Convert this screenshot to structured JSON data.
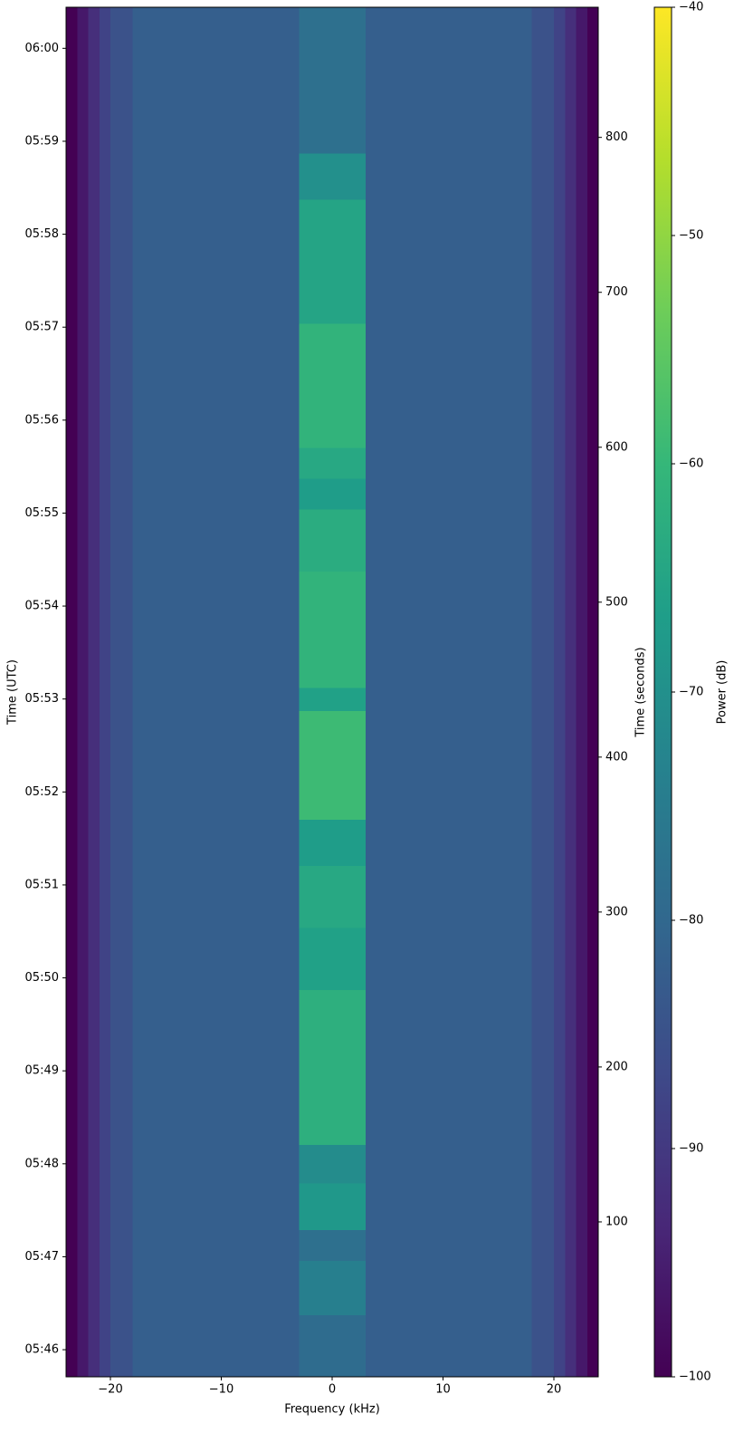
{
  "chart_data": {
    "type": "heatmap",
    "xlabel": "Frequency (kHz)",
    "ylabel": "Time (UTC)",
    "y2label": "Time (seconds)",
    "colorbar_label": "Power (dB)",
    "colormap": "viridis",
    "xlim": [
      -24,
      24
    ],
    "xticks": [
      {
        "value": -20,
        "label": "−20"
      },
      {
        "value": -10,
        "label": "−10"
      },
      0,
      10,
      20
    ],
    "ylim": [
      0,
      884
    ],
    "yticks": [
      {
        "value": 17.5,
        "label": "05:46"
      },
      {
        "value": 77.5,
        "label": "05:47"
      },
      {
        "value": 137.5,
        "label": "05:48"
      },
      {
        "value": 197.5,
        "label": "05:49"
      },
      {
        "value": 257.5,
        "label": "05:50"
      },
      {
        "value": 317.5,
        "label": "05:51"
      },
      {
        "value": 377.5,
        "label": "05:52"
      },
      {
        "value": 437.5,
        "label": "05:53"
      },
      {
        "value": 497.5,
        "label": "05:54"
      },
      {
        "value": 557.5,
        "label": "05:55"
      },
      {
        "value": 617.5,
        "label": "05:56"
      },
      {
        "value": 677.5,
        "label": "05:57"
      },
      {
        "value": 737.5,
        "label": "05:58"
      },
      {
        "value": 797.5,
        "label": "05:59"
      },
      {
        "value": 857.5,
        "label": "06:00"
      }
    ],
    "y2lim": [
      0,
      884
    ],
    "y2ticks": [
      100,
      200,
      300,
      400,
      500,
      600,
      700,
      800
    ],
    "clim": [
      -100,
      -40
    ],
    "cticks": [
      {
        "value": -100,
        "label": "−100"
      },
      {
        "value": -90,
        "label": "−90"
      },
      {
        "value": -80,
        "label": "−80"
      },
      {
        "value": -70,
        "label": "−70"
      },
      {
        "value": -60,
        "label": "−60"
      },
      {
        "value": -50,
        "label": "−50"
      },
      {
        "value": -40,
        "label": "−40"
      }
    ],
    "x_bins": [
      -24,
      -23,
      -22,
      -21,
      -20,
      -18,
      -3,
      3,
      18,
      20,
      21,
      22,
      23,
      24
    ],
    "y_bins": [
      0,
      40,
      75,
      95,
      125,
      150,
      250,
      290,
      330,
      360,
      430,
      445,
      520,
      560,
      580,
      600,
      680,
      760,
      790,
      884
    ],
    "z": [
      [
        -100,
        -96,
        -92,
        -88,
        -85,
        -82,
        -79,
        -82,
        -85,
        -88,
        -92,
        -96,
        -100
      ],
      [
        -100,
        -96,
        -92,
        -88,
        -85,
        -82,
        -74,
        -82,
        -85,
        -88,
        -92,
        -96,
        -100
      ],
      [
        -100,
        -96,
        -92,
        -88,
        -85,
        -82,
        -78,
        -82,
        -85,
        -88,
        -92,
        -96,
        -100
      ],
      [
        -100,
        -96,
        -92,
        -88,
        -85,
        -82,
        -68,
        -82,
        -85,
        -88,
        -92,
        -96,
        -100
      ],
      [
        -100,
        -96,
        -92,
        -88,
        -85,
        -82,
        -71,
        -82,
        -85,
        -88,
        -92,
        -96,
        -100
      ],
      [
        -100,
        -96,
        -92,
        -88,
        -85,
        -82,
        -62,
        -82,
        -85,
        -88,
        -92,
        -96,
        -100
      ],
      [
        -100,
        -96,
        -92,
        -88,
        -85,
        -82,
        -66,
        -82,
        -85,
        -88,
        -92,
        -96,
        -100
      ],
      [
        -100,
        -96,
        -92,
        -88,
        -85,
        -82,
        -64,
        -82,
        -85,
        -88,
        -92,
        -96,
        -100
      ],
      [
        -100,
        -96,
        -92,
        -88,
        -85,
        -82,
        -67,
        -82,
        -85,
        -88,
        -92,
        -96,
        -100
      ],
      [
        -100,
        -96,
        -92,
        -88,
        -85,
        -82,
        -59,
        -82,
        -85,
        -88,
        -92,
        -96,
        -100
      ],
      [
        -100,
        -96,
        -92,
        -88,
        -85,
        -82,
        -66,
        -82,
        -85,
        -88,
        -92,
        -96,
        -100
      ],
      [
        -100,
        -96,
        -92,
        -88,
        -85,
        -82,
        -61,
        -82,
        -85,
        -88,
        -92,
        -96,
        -100
      ],
      [
        -100,
        -96,
        -92,
        -88,
        -85,
        -82,
        -63,
        -82,
        -85,
        -88,
        -92,
        -96,
        -100
      ],
      [
        -100,
        -96,
        -92,
        -88,
        -85,
        -82,
        -67,
        -82,
        -85,
        -88,
        -92,
        -96,
        -100
      ],
      [
        -100,
        -96,
        -92,
        -88,
        -85,
        -82,
        -64,
        -82,
        -85,
        -88,
        -92,
        -96,
        -100
      ],
      [
        -100,
        -96,
        -92,
        -88,
        -85,
        -82,
        -61,
        -82,
        -85,
        -88,
        -92,
        -96,
        -100
      ],
      [
        -100,
        -96,
        -92,
        -88,
        -85,
        -82,
        -65,
        -82,
        -85,
        -88,
        -92,
        -96,
        -100
      ],
      [
        -100,
        -96,
        -92,
        -88,
        -85,
        -82,
        -70,
        -82,
        -85,
        -88,
        -92,
        -96,
        -100
      ],
      [
        -100,
        -96,
        -92,
        -88,
        -85,
        -82,
        -78,
        -82,
        -85,
        -88,
        -92,
        -96,
        -100
      ]
    ]
  }
}
